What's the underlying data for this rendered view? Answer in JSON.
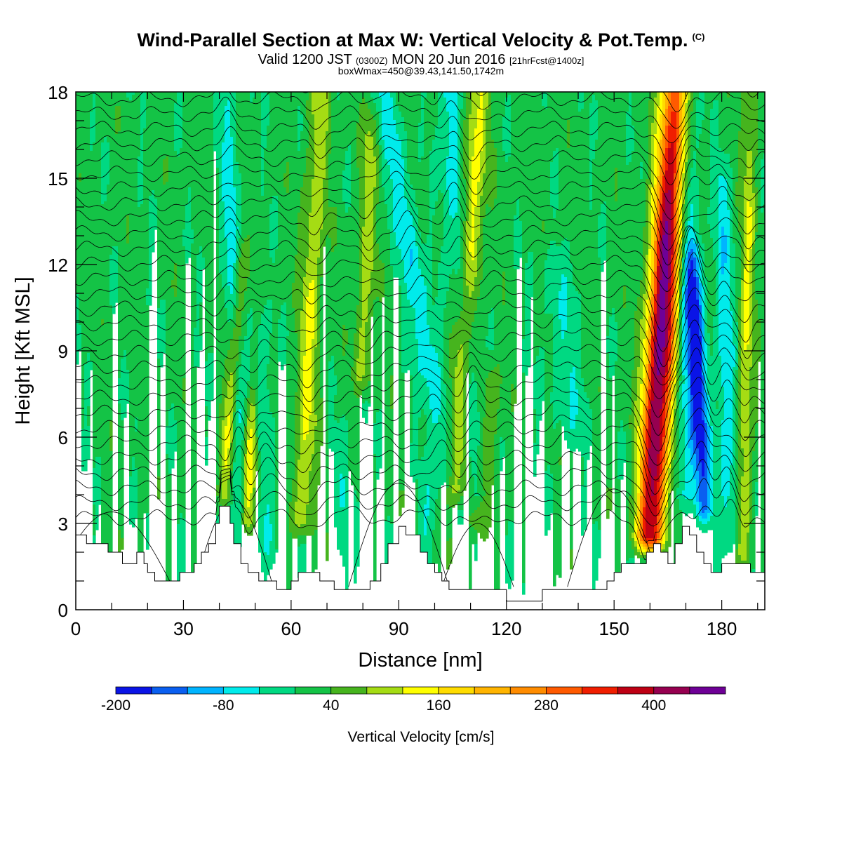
{
  "header": {
    "title": "Wind-Parallel Section at Max W: Vertical Velocity & Pot.Temp.",
    "copyright": "(C)",
    "valid_prefix": "Valid 1200 JST",
    "valid_utc": "(0300Z)",
    "valid_date": "MON 20 Jun 2016",
    "forecast": "[21hrFcst@1400z]",
    "box_info": "boxWmax=450@39.43,141.50,1742m"
  },
  "chart_data": {
    "type": "heatmap",
    "xlabel": "Distance [nm]",
    "ylabel": "Height [Kft MSL]",
    "xlim": [
      0,
      192
    ],
    "ylim": [
      0,
      18
    ],
    "x_ticks": [
      0,
      30,
      60,
      90,
      120,
      150,
      180
    ],
    "y_ticks": [
      0,
      3,
      6,
      9,
      12,
      15,
      18
    ],
    "colorbar": {
      "label": "Vertical Velocity [cm/s]",
      "bins": [
        -200,
        -160,
        -120,
        -80,
        -40,
        0,
        40,
        80,
        120,
        160,
        200,
        240,
        280,
        320,
        360,
        400,
        440,
        480
      ],
      "colors": [
        "#0a14e6",
        "#0a5ff0",
        "#00b4ff",
        "#00ebeb",
        "#00d982",
        "#14c346",
        "#46b41e",
        "#a5dc14",
        "#ffff00",
        "#ffdc00",
        "#ffb400",
        "#ff8c00",
        "#ff5a00",
        "#f01e00",
        "#be0014",
        "#960050",
        "#6e0096"
      ],
      "tick_labels": [
        "-200",
        "-80",
        "40",
        "160",
        "280",
        "400"
      ]
    },
    "terrain": [
      [
        0,
        2.6
      ],
      [
        3,
        2.6
      ],
      [
        3,
        2.3
      ],
      [
        9,
        2.3
      ],
      [
        9,
        2.0
      ],
      [
        13,
        2.0
      ],
      [
        13,
        1.6
      ],
      [
        17,
        1.6
      ],
      [
        17,
        2.0
      ],
      [
        19,
        2.0
      ],
      [
        19,
        1.6
      ],
      [
        20,
        1.6
      ],
      [
        20,
        1.3
      ],
      [
        22,
        1.3
      ],
      [
        22,
        1.0
      ],
      [
        29,
        1.0
      ],
      [
        29,
        1.3
      ],
      [
        33,
        1.3
      ],
      [
        33,
        1.6
      ],
      [
        35,
        1.6
      ],
      [
        35,
        2.0
      ],
      [
        37,
        2.0
      ],
      [
        37,
        2.3
      ],
      [
        39,
        2.3
      ],
      [
        39,
        3.0
      ],
      [
        40,
        3.0
      ],
      [
        40,
        3.6
      ],
      [
        43,
        3.6
      ],
      [
        43,
        3.0
      ],
      [
        44,
        3.0
      ],
      [
        44,
        2.3
      ],
      [
        46,
        2.3
      ],
      [
        46,
        1.6
      ],
      [
        48,
        1.6
      ],
      [
        48,
        1.3
      ],
      [
        51,
        1.3
      ],
      [
        51,
        1.0
      ],
      [
        56,
        1.0
      ],
      [
        56,
        0.7
      ],
      [
        60,
        0.7
      ],
      [
        60,
        1.0
      ],
      [
        62,
        1.0
      ],
      [
        62,
        1.3
      ],
      [
        68,
        1.3
      ],
      [
        68,
        1.0
      ],
      [
        72,
        1.0
      ],
      [
        72,
        0.7
      ],
      [
        82,
        0.7
      ],
      [
        82,
        1.0
      ],
      [
        85,
        1.0
      ],
      [
        85,
        1.6
      ],
      [
        87,
        1.6
      ],
      [
        87,
        2.3
      ],
      [
        90,
        2.3
      ],
      [
        90,
        2.9
      ],
      [
        92,
        2.9
      ],
      [
        92,
        2.6
      ],
      [
        96,
        2.6
      ],
      [
        96,
        2.0
      ],
      [
        98,
        2.0
      ],
      [
        98,
        1.6
      ],
      [
        100,
        1.6
      ],
      [
        100,
        1.3
      ],
      [
        102,
        1.3
      ],
      [
        102,
        1.0
      ],
      [
        104,
        1.0
      ],
      [
        104,
        0.7
      ],
      [
        120,
        0.7
      ],
      [
        120,
        0.3
      ],
      [
        130,
        0.3
      ],
      [
        130,
        0.7
      ],
      [
        148,
        0.7
      ],
      [
        148,
        1.0
      ],
      [
        150,
        1.0
      ],
      [
        150,
        1.3
      ],
      [
        152,
        1.3
      ],
      [
        152,
        1.6
      ],
      [
        159,
        1.6
      ],
      [
        159,
        2.0
      ],
      [
        161,
        2.0
      ],
      [
        161,
        2.3
      ],
      [
        163,
        2.3
      ],
      [
        163,
        2.0
      ],
      [
        165,
        2.0
      ],
      [
        165,
        1.6
      ],
      [
        167,
        1.6
      ],
      [
        167,
        2.3
      ],
      [
        169,
        2.3
      ],
      [
        169,
        2.9
      ],
      [
        171,
        2.9
      ],
      [
        171,
        2.6
      ],
      [
        173,
        2.6
      ],
      [
        173,
        2.0
      ],
      [
        175,
        2.0
      ],
      [
        175,
        1.6
      ],
      [
        177,
        1.6
      ],
      [
        177,
        1.3
      ],
      [
        180,
        1.3
      ],
      [
        180,
        1.6
      ],
      [
        188,
        1.6
      ],
      [
        188,
        1.3
      ],
      [
        192,
        1.3
      ]
    ],
    "updraft_bands": [
      {
        "bottom": [
          160,
          2.5
        ],
        "top": [
          167,
          18
        ],
        "peak": 450,
        "width_nm": 4.0
      },
      {
        "bottom": [
          106,
          4.2
        ],
        "top": [
          112,
          18
        ],
        "peak": 150,
        "width_nm": 3.5
      },
      {
        "bottom": [
          63,
          3.0
        ],
        "top": [
          68,
          18
        ],
        "peak": 110,
        "width_nm": 3.0
      },
      {
        "bottom": [
          41,
          4.0
        ],
        "top": [
          46,
          12
        ],
        "peak": 130,
        "width_nm": 2.0
      },
      {
        "bottom": [
          48,
          3.0
        ],
        "top": [
          49,
          7
        ],
        "peak": 150,
        "width_nm": 2.0
      },
      {
        "bottom": [
          80,
          8.0
        ],
        "top": [
          82,
          17
        ],
        "peak": 90,
        "width_nm": 2.5
      },
      {
        "bottom": [
          186,
          2.0
        ],
        "top": [
          188,
          18
        ],
        "peak": 110,
        "width_nm": 2.0
      },
      {
        "bottom": [
          112,
          3.0
        ],
        "top": [
          116,
          8
        ],
        "peak": 80,
        "width_nm": 3.0
      }
    ],
    "downdraft_bands": [
      {
        "bottom": [
          112,
          4.0
        ],
        "top": [
          104,
          18
        ],
        "peak": -120,
        "width_nm": 3.0
      },
      {
        "bottom": [
          104,
          4.5
        ],
        "top": [
          86,
          18
        ],
        "peak": -90,
        "width_nm": 3.5
      },
      {
        "bottom": [
          175,
          3.5
        ],
        "top": [
          172,
          12
        ],
        "peak": -180,
        "width_nm": 2.5
      },
      {
        "bottom": [
          170,
          4.0
        ],
        "top": [
          171,
          18
        ],
        "peak": -90,
        "width_nm": 3.0
      },
      {
        "bottom": [
          46,
          2.5
        ],
        "top": [
          42,
          18
        ],
        "peak": -80,
        "width_nm": 2.5
      },
      {
        "bottom": [
          54,
          2.0
        ],
        "top": [
          52,
          10
        ],
        "peak": -50,
        "width_nm": 2.5
      },
      {
        "bottom": [
          182,
          2.5
        ],
        "top": [
          180,
          15
        ],
        "peak": -90,
        "width_nm": 2.5
      },
      {
        "bottom": [
          138,
          6.0
        ],
        "top": [
          134,
          12
        ],
        "peak": -50,
        "width_nm": 5.0
      },
      {
        "bottom": [
          77,
          1.5
        ],
        "top": [
          74,
          6
        ],
        "peak": -40,
        "width_nm": 3.0
      },
      {
        "bottom": [
          96,
          1.5
        ],
        "top": [
          100,
          5
        ],
        "peak": -40,
        "width_nm": 3.0
      }
    ],
    "theta_contours": {
      "count": 30,
      "base_height": 3.2,
      "spacing": 0.52
    }
  }
}
